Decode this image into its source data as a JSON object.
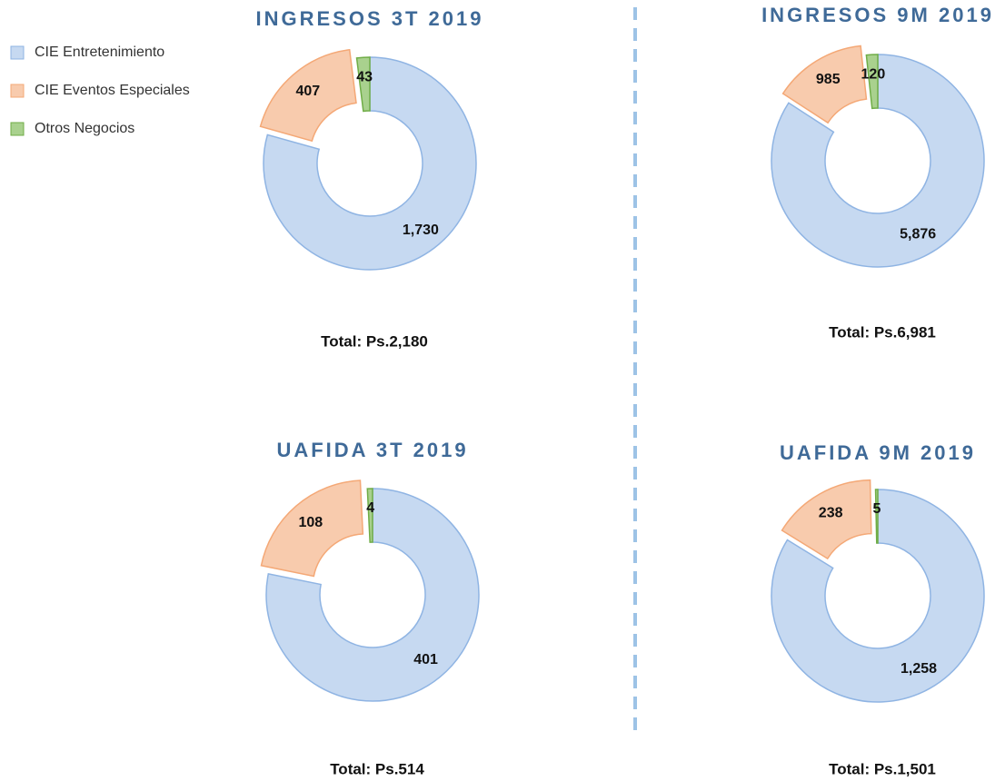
{
  "legend": {
    "labels": [
      "CIE Entretenimiento",
      "CIE Eventos Especiales",
      "Otros Negocios"
    ],
    "colors": [
      "#c6d9f1",
      "#f8cbad",
      "#a9d18e"
    ],
    "stroke_colors": [
      "#8fb4e3",
      "#f4a876",
      "#70ad47"
    ]
  },
  "chart_data": [
    {
      "type": "pie",
      "title": "INGRESOS 3T 2019",
      "values": [
        1730,
        407,
        43
      ],
      "value_labels": [
        "1,730",
        "407",
        "43"
      ],
      "annotation": "Total: Ps.2,180"
    },
    {
      "type": "pie",
      "title": "INGRESOS 9M 2019",
      "values": [
        5876,
        985,
        120
      ],
      "value_labels": [
        "5,876",
        "985",
        "120"
      ],
      "annotation": "Total: Ps.6,981"
    },
    {
      "type": "pie",
      "title": "UAFIDA 3T 2019",
      "values": [
        401,
        108,
        4
      ],
      "value_labels": [
        "401",
        "108",
        "4"
      ],
      "annotation": "Total: Ps.514"
    },
    {
      "type": "pie",
      "title": "UAFIDA 9M 2019",
      "values": [
        1258,
        238,
        5
      ],
      "value_labels": [
        "1,258",
        "238",
        "5"
      ],
      "annotation": "Total: Ps.1,501"
    }
  ]
}
